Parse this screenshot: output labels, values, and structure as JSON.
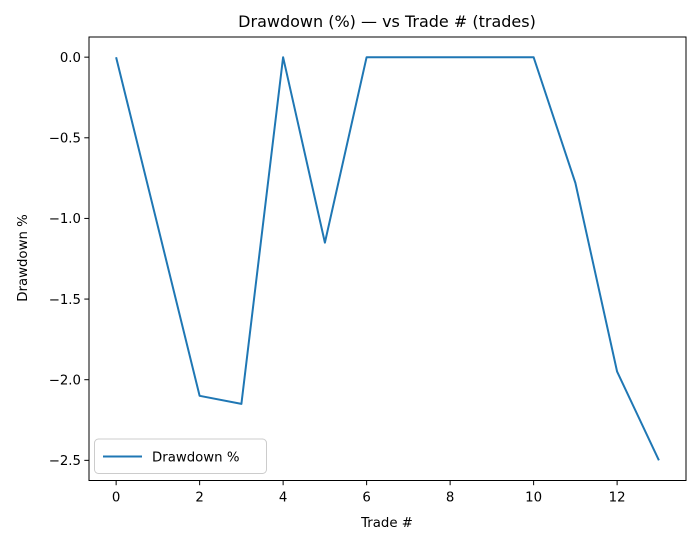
{
  "figure": {
    "background": "#ffffff",
    "text_color": "#000000",
    "spine_color": "#000000"
  },
  "chart_data": {
    "type": "line",
    "title": "Drawdown (%) — vs Trade # (trades)",
    "xlabel": "Trade #",
    "ylabel": "Drawdown %",
    "x": [
      0,
      1,
      2,
      3,
      4,
      5,
      6,
      7,
      8,
      9,
      10,
      11,
      12,
      13
    ],
    "series": [
      {
        "name": "Drawdown %",
        "color": "#1f77b4",
        "values": [
          0.0,
          -1.05,
          -2.1,
          -2.15,
          0.0,
          -1.15,
          0.0,
          0.0,
          0.0,
          0.0,
          0.0,
          -0.78,
          -1.95,
          -2.5
        ]
      }
    ],
    "xlim": [
      -0.65,
      13.65
    ],
    "ylim": [
      -2.625,
      0.125
    ],
    "xticks": {
      "values": [
        0,
        2,
        4,
        6,
        8,
        10,
        12
      ],
      "labels": [
        "0",
        "2",
        "4",
        "6",
        "8",
        "10",
        "12"
      ]
    },
    "yticks": {
      "values": [
        0.0,
        -0.5,
        -1.0,
        -1.5,
        -2.0,
        -2.5
      ],
      "labels": [
        "0.0",
        "−0.5",
        "−1.0",
        "−1.5",
        "−2.0",
        "−2.5"
      ]
    },
    "grid": false,
    "markers": false,
    "legend": {
      "position": "lower-left",
      "entries": [
        {
          "label": "Drawdown %",
          "color": "#1f77b4"
        }
      ]
    }
  }
}
